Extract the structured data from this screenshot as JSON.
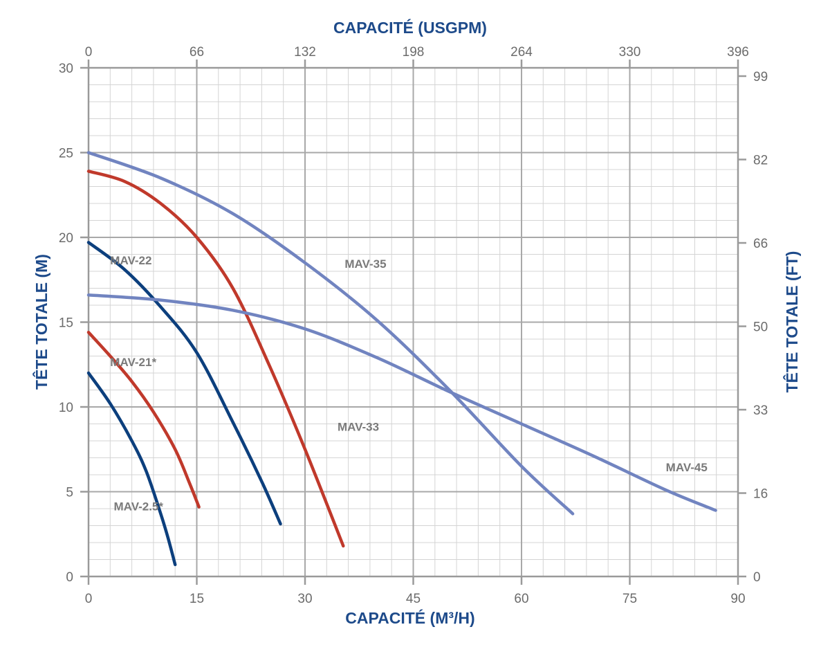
{
  "chart_data": {
    "type": "line",
    "title": "",
    "x_bottom": {
      "label": "CAPACITÉ (M³/H)",
      "range": [
        0,
        90
      ],
      "ticks": [
        0,
        15,
        30,
        45,
        60,
        75,
        90
      ],
      "tick_labels": [
        "0",
        "15",
        "30",
        "45",
        "60",
        "75",
        "90"
      ]
    },
    "x_top": {
      "label": "CAPACITÉ (USGPM)",
      "tick_labels": [
        "0",
        "66",
        "132",
        "198",
        "264",
        "330",
        "396"
      ]
    },
    "y_left": {
      "label": "TÊTE TOTALE (M)",
      "range": [
        0,
        30
      ],
      "ticks": [
        0,
        5,
        10,
        15,
        20,
        25,
        30
      ],
      "tick_labels": [
        "0",
        "5",
        "10",
        "15",
        "20",
        "25",
        "30"
      ]
    },
    "y_right": {
      "label": "TÊTE TOTALE (FT)",
      "tick_labels": [
        "0",
        "16",
        "33",
        "50",
        "66",
        "82",
        "99"
      ]
    },
    "grid": true,
    "series": [
      {
        "name": "MAV-2.5*",
        "color": "#0c3f7d",
        "x": [
          0,
          3,
          6,
          8,
          10,
          11,
          12
        ],
        "y": [
          12.0,
          10.2,
          8.0,
          6.2,
          3.7,
          2.3,
          0.7
        ]
      },
      {
        "name": "MAV-21*",
        "color": "#c0392b",
        "x": [
          0,
          3,
          6,
          9,
          12,
          14,
          15.3
        ],
        "y": [
          14.4,
          13.0,
          11.5,
          9.7,
          7.5,
          5.5,
          4.1
        ]
      },
      {
        "name": "MAV-22",
        "color": "#0c3f7d",
        "x": [
          0,
          5,
          10,
          15,
          20,
          24,
          26.6
        ],
        "y": [
          19.7,
          18.1,
          15.9,
          13.2,
          9.1,
          5.6,
          3.1
        ]
      },
      {
        "name": "MAV-33",
        "color": "#c0392b",
        "x": [
          0,
          5,
          10,
          15,
          20,
          25,
          30,
          35.3
        ],
        "y": [
          23.9,
          23.3,
          22.0,
          20.0,
          17.0,
          12.5,
          7.5,
          1.8
        ]
      },
      {
        "name": "MAV-35",
        "color": "#7184c0",
        "x": [
          0,
          10,
          20,
          30,
          40,
          50,
          60,
          67.1
        ],
        "y": [
          25.0,
          23.5,
          21.4,
          18.5,
          15.1,
          11.0,
          6.5,
          3.7
        ]
      },
      {
        "name": "MAV-45",
        "color": "#7184c0",
        "x": [
          0,
          10,
          20,
          30,
          40,
          50,
          60,
          70,
          80,
          86.9
        ],
        "y": [
          16.6,
          16.3,
          15.7,
          14.6,
          12.9,
          10.9,
          9.0,
          7.1,
          5.1,
          3.9
        ]
      }
    ],
    "annotations": [
      {
        "text": "MAV-2.5*",
        "x": 3.5,
        "y": 3.9
      },
      {
        "text": "MAV-21*",
        "x": 3.0,
        "y": 12.4
      },
      {
        "text": "MAV-22",
        "x": 3.0,
        "y": 18.4
      },
      {
        "text": "MAV-33",
        "x": 34.5,
        "y": 8.6
      },
      {
        "text": "MAV-35",
        "x": 35.5,
        "y": 18.2
      },
      {
        "text": "MAV-45",
        "x": 80.0,
        "y": 6.2
      }
    ]
  }
}
